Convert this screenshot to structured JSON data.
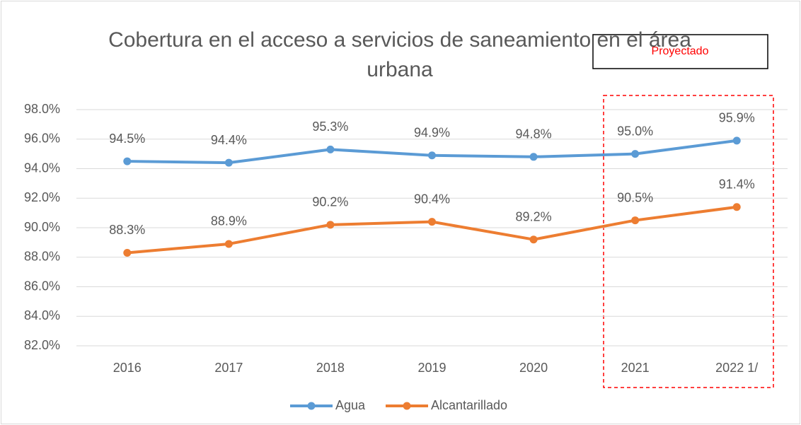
{
  "chart_data": {
    "type": "line",
    "title": "Cobertura en el acceso a servicios de saneamiento en el área urbana",
    "annotation": "Proyectado",
    "categories": [
      "2016",
      "2017",
      "2018",
      "2019",
      "2020",
      "2021",
      "2022 1/"
    ],
    "series": [
      {
        "name": "Agua",
        "color": "#5b9bd5",
        "values": [
          94.5,
          94.4,
          95.3,
          94.9,
          94.8,
          95.0,
          95.9
        ],
        "value_labels": [
          "94.5%",
          "94.4%",
          "95.3%",
          "94.9%",
          "94.8%",
          "95.0%",
          "95.9%"
        ]
      },
      {
        "name": "Alcantarillado",
        "color": "#ed7d31",
        "values": [
          88.3,
          88.9,
          90.2,
          90.4,
          89.2,
          90.5,
          91.4
        ],
        "value_labels": [
          "88.3%",
          "88.9%",
          "90.2%",
          "90.4%",
          "89.2%",
          "90.5%",
          "91.4%"
        ]
      }
    ],
    "ylim": [
      82,
      98
    ],
    "yticks": [
      {
        "value": 82,
        "label": "82.0%"
      },
      {
        "value": 84,
        "label": "84.0%"
      },
      {
        "value": 86,
        "label": "86.0%"
      },
      {
        "value": 88,
        "label": "88.0%"
      },
      {
        "value": 90,
        "label": "90.0%"
      },
      {
        "value": 92,
        "label": "92.0%"
      },
      {
        "value": 94,
        "label": "94.0%"
      },
      {
        "value": 96,
        "label": "96.0%"
      },
      {
        "value": 98,
        "label": "98.0%"
      }
    ],
    "grid": true,
    "legend": "bottom"
  }
}
